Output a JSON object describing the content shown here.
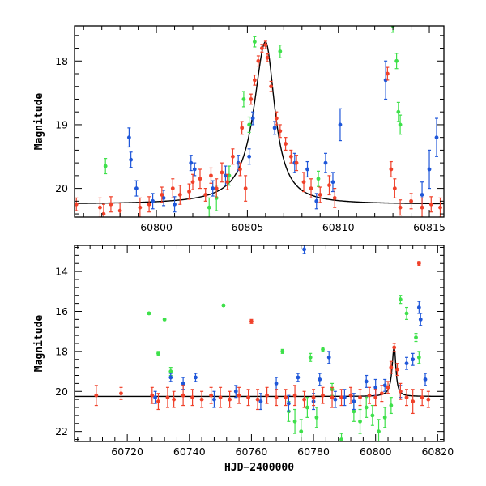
{
  "colors": {
    "red": "#f0412a",
    "blue": "#1f57d9",
    "green": "#3ee04a",
    "model": "#000000"
  },
  "chart_data": [
    {
      "type": "scatter",
      "title": "",
      "xlabel": "",
      "ylabel": "Magnitude",
      "xlim": [
        60795.5,
        60815.8
      ],
      "ylim": [
        20.45,
        17.45
      ],
      "y_inverted": true,
      "x_ticks": [
        "60800",
        "60805",
        "60810",
        "60815"
      ],
      "y_ticks": [
        "18",
        "19",
        "20"
      ],
      "grid": false,
      "model_curve": {
        "type": "peaked",
        "peak_x": 60806.0,
        "peak_mag": 17.7,
        "base_mag": 20.25,
        "rise_width": 1.4,
        "fall_width": 1.1
      },
      "series": [
        {
          "color_key": "red",
          "points": [
            [
              60795.6,
              20.25,
              0.1
            ],
            [
              60796.9,
              20.3,
              0.15
            ],
            [
              60797.1,
              20.4,
              0.15
            ],
            [
              60797.5,
              20.25,
              0.12
            ],
            [
              60798.0,
              20.35,
              0.12
            ],
            [
              60799.1,
              20.3,
              0.15
            ],
            [
              60799.6,
              20.25,
              0.12
            ],
            [
              60800.3,
              20.1,
              0.12
            ],
            [
              60800.9,
              20.0,
              0.15
            ],
            [
              60801.3,
              20.1,
              0.15
            ],
            [
              60801.8,
              20.05,
              0.12
            ],
            [
              60802.0,
              19.9,
              0.12
            ],
            [
              60802.4,
              19.85,
              0.15
            ],
            [
              60802.7,
              20.1,
              0.1
            ],
            [
              60803.0,
              19.8,
              0.12
            ],
            [
              60803.3,
              20.0,
              0.15
            ],
            [
              60803.6,
              19.75,
              0.15
            ],
            [
              60803.9,
              19.9,
              0.12
            ],
            [
              60804.2,
              19.5,
              0.12
            ],
            [
              60804.6,
              19.7,
              0.1
            ],
            [
              60804.9,
              20.0,
              0.2
            ],
            [
              60804.7,
              19.05,
              0.1
            ],
            [
              60805.2,
              18.6,
              0.08
            ],
            [
              60805.4,
              18.3,
              0.08
            ],
            [
              60805.6,
              18.0,
              0.08
            ],
            [
              60805.8,
              17.8,
              0.06
            ],
            [
              60806.0,
              17.75,
              0.06
            ],
            [
              60806.1,
              17.95,
              0.06
            ],
            [
              60806.3,
              18.4,
              0.08
            ],
            [
              60806.6,
              18.9,
              0.1
            ],
            [
              60806.8,
              19.1,
              0.1
            ],
            [
              60807.1,
              19.3,
              0.1
            ],
            [
              60807.4,
              19.5,
              0.1
            ],
            [
              60807.7,
              19.6,
              0.12
            ],
            [
              60808.1,
              19.9,
              0.15
            ],
            [
              60808.5,
              20.0,
              0.15
            ],
            [
              60809.0,
              20.1,
              0.12
            ],
            [
              60809.5,
              19.95,
              0.15
            ],
            [
              60809.8,
              20.15,
              0.15
            ],
            [
              60812.7,
              18.2,
              0.1
            ],
            [
              60812.9,
              19.7,
              0.12
            ],
            [
              60813.1,
              20.0,
              0.15
            ],
            [
              60813.4,
              20.3,
              0.12
            ],
            [
              60814.0,
              20.2,
              0.12
            ],
            [
              60814.6,
              20.3,
              0.15
            ],
            [
              60815.1,
              20.25,
              0.12
            ],
            [
              60815.6,
              20.3,
              0.15
            ]
          ]
        },
        {
          "color_key": "blue",
          "points": [
            [
              60798.5,
              19.2,
              0.15
            ],
            [
              60798.6,
              19.55,
              0.12
            ],
            [
              60798.9,
              20.0,
              0.12
            ],
            [
              60799.8,
              20.2,
              0.12
            ],
            [
              60800.4,
              20.15,
              0.12
            ],
            [
              60801.0,
              20.25,
              0.12
            ],
            [
              60801.9,
              19.6,
              0.12
            ],
            [
              60802.1,
              19.7,
              0.1
            ],
            [
              60803.1,
              20.0,
              0.12
            ],
            [
              60803.8,
              19.8,
              0.15
            ],
            [
              60804.5,
              19.6,
              0.12
            ],
            [
              60805.1,
              19.5,
              0.12
            ],
            [
              60805.3,
              18.9,
              0.1
            ],
            [
              60806.5,
              19.05,
              0.1
            ],
            [
              60807.6,
              19.6,
              0.15
            ],
            [
              60808.3,
              19.7,
              0.12
            ],
            [
              60808.8,
              20.2,
              0.12
            ],
            [
              60809.3,
              19.6,
              0.15
            ],
            [
              60809.7,
              19.9,
              0.15
            ],
            [
              60810.1,
              19.0,
              0.25
            ],
            [
              60812.6,
              18.3,
              0.3
            ],
            [
              60814.6,
              20.1,
              0.2
            ],
            [
              60815.0,
              19.7,
              0.3
            ],
            [
              60815.4,
              19.2,
              0.3
            ]
          ]
        },
        {
          "color_key": "green",
          "points": [
            [
              60797.2,
              19.65,
              0.12
            ],
            [
              60802.9,
              20.3,
              0.15
            ],
            [
              60803.3,
              20.15,
              0.2
            ],
            [
              60804.0,
              19.8,
              0.15
            ],
            [
              60804.8,
              18.6,
              0.12
            ],
            [
              60805.1,
              19.0,
              0.12
            ],
            [
              60805.4,
              17.7,
              0.08
            ],
            [
              60806.8,
              17.85,
              0.1
            ],
            [
              60808.9,
              19.85,
              0.12
            ],
            [
              60813.0,
              17.45,
              0.1
            ],
            [
              60813.2,
              18.0,
              0.12
            ],
            [
              60813.3,
              18.8,
              0.15
            ],
            [
              60813.4,
              19.0,
              0.15
            ]
          ]
        }
      ]
    },
    {
      "type": "scatter",
      "title": "",
      "xlabel": "HJD−2400000",
      "ylabel": "Magnitude",
      "xlim": [
        60703,
        60822
      ],
      "ylim": [
        22.5,
        12.7
      ],
      "y_inverted": true,
      "x_ticks": [
        "60720",
        "60740",
        "60760",
        "60780",
        "60800",
        "60820"
      ],
      "y_ticks": [
        "14",
        "16",
        "18",
        "20",
        "22"
      ],
      "grid": false,
      "model_curve": {
        "type": "peaked",
        "peak_x": 60806.0,
        "peak_mag": 17.7,
        "base_mag": 20.25,
        "rise_width": 1.4,
        "fall_width": 1.1
      },
      "series": [
        {
          "color_key": "red",
          "points": [
            [
              60710,
              20.2,
              0.5
            ],
            [
              60718,
              20.1,
              0.3
            ],
            [
              60728,
              20.2,
              0.4
            ],
            [
              60730,
              20.5,
              0.4
            ],
            [
              60733,
              20.3,
              0.5
            ],
            [
              60735,
              20.4,
              0.4
            ],
            [
              60738,
              20.2,
              0.5
            ],
            [
              60741,
              20.3,
              0.4
            ],
            [
              60744,
              20.4,
              0.4
            ],
            [
              60747,
              20.2,
              0.4
            ],
            [
              60750,
              20.3,
              0.5
            ],
            [
              60753,
              20.4,
              0.4
            ],
            [
              60756,
              20.2,
              0.4
            ],
            [
              60759,
              20.3,
              0.4
            ],
            [
              60760,
              16.5,
              0.1
            ],
            [
              60762,
              20.4,
              0.5
            ],
            [
              60765,
              20.2,
              0.4
            ],
            [
              60768,
              20.3,
              0.4
            ],
            [
              60771,
              20.3,
              0.4
            ],
            [
              60774,
              20.2,
              0.5
            ],
            [
              60777,
              20.4,
              0.4
            ],
            [
              60780,
              20.3,
              0.4
            ],
            [
              60783,
              20.2,
              0.4
            ],
            [
              60786,
              20.3,
              0.5
            ],
            [
              60789,
              20.3,
              0.4
            ],
            [
              60792,
              20.2,
              0.4
            ],
            [
              60795,
              20.3,
              0.4
            ],
            [
              60798,
              20.2,
              0.4
            ],
            [
              60800,
              20.3,
              0.4
            ],
            [
              60802,
              20.1,
              0.4
            ],
            [
              60804,
              19.8,
              0.3
            ],
            [
              60805,
              18.8,
              0.3
            ],
            [
              60806,
              17.8,
              0.2
            ],
            [
              60807,
              18.9,
              0.3
            ],
            [
              60808,
              20.0,
              0.4
            ],
            [
              60810,
              20.3,
              0.4
            ],
            [
              60812,
              20.5,
              0.6
            ],
            [
              60814,
              13.6,
              0.1
            ],
            [
              60815,
              20.3,
              0.4
            ],
            [
              60817,
              20.4,
              0.4
            ]
          ]
        },
        {
          "color_key": "blue",
          "points": [
            [
              60729,
              20.3,
              0.3
            ],
            [
              60734,
              19.3,
              0.2
            ],
            [
              60738,
              19.6,
              0.3
            ],
            [
              60742,
              19.3,
              0.2
            ],
            [
              60748,
              20.4,
              0.4
            ],
            [
              60755,
              20.0,
              0.3
            ],
            [
              60763,
              20.5,
              0.4
            ],
            [
              60768,
              19.6,
              0.3
            ],
            [
              60772,
              20.6,
              0.4
            ],
            [
              60775,
              19.3,
              0.2
            ],
            [
              60777,
              12.9,
              0.2
            ],
            [
              60780,
              20.5,
              0.4
            ],
            [
              60782,
              19.4,
              0.3
            ],
            [
              60785,
              18.3,
              0.3
            ],
            [
              60787,
              20.4,
              0.4
            ],
            [
              60790,
              20.3,
              0.4
            ],
            [
              60793,
              20.5,
              0.4
            ],
            [
              60797,
              19.5,
              0.3
            ],
            [
              60800,
              19.8,
              0.4
            ],
            [
              60803,
              19.7,
              0.3
            ],
            [
              60808,
              20.0,
              0.3
            ],
            [
              60810,
              18.6,
              0.3
            ],
            [
              60812,
              18.4,
              0.3
            ],
            [
              60814,
              15.8,
              0.3
            ],
            [
              60814.5,
              16.4,
              0.3
            ],
            [
              60816,
              19.4,
              0.3
            ]
          ]
        },
        {
          "color_key": "green",
          "points": [
            [
              60727,
              16.1,
              0.05
            ],
            [
              60730,
              18.1,
              0.1
            ],
            [
              60732,
              16.4,
              0.05
            ],
            [
              60734,
              19.0,
              0.2
            ],
            [
              60751,
              15.7,
              0.05
            ],
            [
              60770,
              18.0,
              0.1
            ],
            [
              60772,
              21.0,
              0.5
            ],
            [
              60774,
              21.5,
              0.6
            ],
            [
              60776,
              22.0,
              0.6
            ],
            [
              60778,
              20.8,
              0.5
            ],
            [
              60779,
              18.3,
              0.2
            ],
            [
              60781,
              21.3,
              0.5
            ],
            [
              60783,
              17.9,
              0.1
            ],
            [
              60786,
              19.9,
              0.3
            ],
            [
              60789,
              22.4,
              0.3
            ],
            [
              60793,
              21.0,
              0.5
            ],
            [
              60795,
              21.5,
              0.6
            ],
            [
              60797,
              20.8,
              0.5
            ],
            [
              60799,
              21.2,
              0.5
            ],
            [
              60801,
              22.0,
              0.6
            ],
            [
              60803,
              21.3,
              0.5
            ],
            [
              60805,
              20.7,
              0.4
            ],
            [
              60808,
              15.4,
              0.2
            ],
            [
              60810,
              16.1,
              0.3
            ],
            [
              60813,
              17.3,
              0.2
            ],
            [
              60814,
              18.3,
              0.3
            ]
          ]
        }
      ]
    }
  ]
}
